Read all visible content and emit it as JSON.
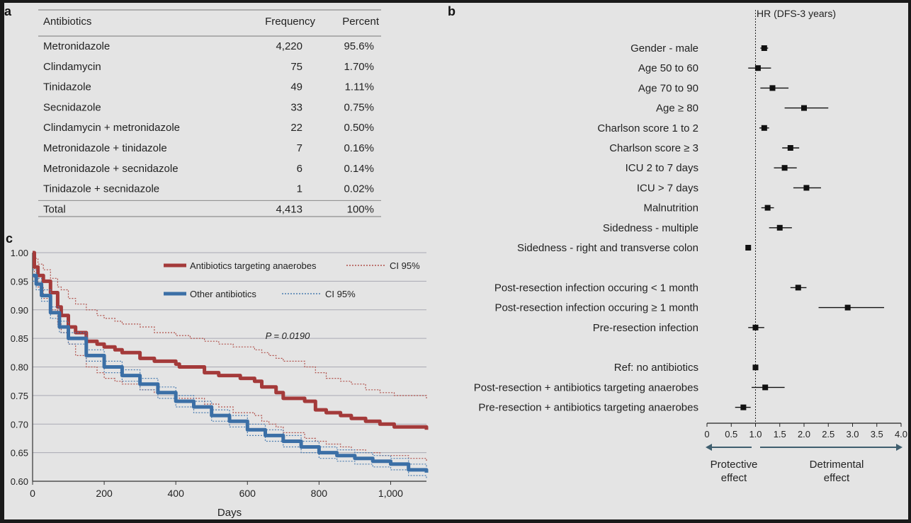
{
  "panels": {
    "a_label": "a",
    "b_label": "b",
    "c_label": "c"
  },
  "table": {
    "headers": [
      "Antibiotics",
      "Frequency",
      "Percent"
    ],
    "rows": [
      {
        "name": "Metronidazole",
        "frequency": "4,220",
        "percent": "95.6%"
      },
      {
        "name": "Clindamycin",
        "frequency": "75",
        "percent": "1.70%"
      },
      {
        "name": "Tinidazole",
        "frequency": "49",
        "percent": "1.11%"
      },
      {
        "name": "Secnidazole",
        "frequency": "33",
        "percent": "0.75%"
      },
      {
        "name": "Clindamycin + metronidazole",
        "frequency": "22",
        "percent": "0.50%"
      },
      {
        "name": "Metronidazole + tinidazole",
        "frequency": "7",
        "percent": "0.16%"
      },
      {
        "name": "Metronidazole + secnidazole",
        "frequency": "6",
        "percent": "0.14%"
      },
      {
        "name": "Tinidazole + secnidazole",
        "frequency": "1",
        "percent": "0.02%"
      }
    ],
    "total": {
      "name": "Total",
      "frequency": "4,413",
      "percent": "100%"
    }
  },
  "chart_data": [
    {
      "type": "line",
      "panel": "c",
      "xlabel": "Days",
      "ylabel": "",
      "xlim": [
        0,
        1100
      ],
      "ylim": [
        0.6,
        1.0
      ],
      "xticks": [
        0,
        200,
        400,
        600,
        800,
        1000
      ],
      "xtick_labels": [
        "0",
        "200",
        "400",
        "600",
        "800",
        "1,000"
      ],
      "yticks": [
        0.6,
        0.65,
        0.7,
        0.75,
        0.8,
        0.85,
        0.9,
        0.95,
        1.0
      ],
      "ytick_labels": [
        "0.60",
        "0.65",
        "0.70",
        "0.75",
        "0.80",
        "0.85",
        "0.90",
        "0.95",
        "1.00"
      ],
      "grid": true,
      "legend_placement": "top-right",
      "annotation": "P = 0.0190",
      "series": [
        {
          "name": "Antibiotics targeting anaerobes",
          "color": "#a43a3a",
          "ci_label": "CI 95%",
          "x": [
            0,
            5,
            15,
            30,
            50,
            70,
            80,
            100,
            120,
            150,
            180,
            200,
            230,
            250,
            300,
            340,
            400,
            410,
            440,
            480,
            520,
            560,
            580,
            620,
            640,
            660,
            680,
            700,
            760,
            790,
            820,
            860,
            890,
            930,
            970,
            1010,
            1050,
            1090,
            1100
          ],
          "y": [
            1.0,
            0.975,
            0.96,
            0.95,
            0.93,
            0.905,
            0.89,
            0.87,
            0.86,
            0.845,
            0.84,
            0.835,
            0.83,
            0.825,
            0.815,
            0.81,
            0.805,
            0.8,
            0.8,
            0.79,
            0.785,
            0.785,
            0.78,
            0.775,
            0.765,
            0.765,
            0.755,
            0.745,
            0.74,
            0.725,
            0.72,
            0.715,
            0.71,
            0.705,
            0.7,
            0.695,
            0.695,
            0.695,
            0.69
          ],
          "ci_upper": [
            1.0,
            0.99,
            0.98,
            0.97,
            0.955,
            0.94,
            0.935,
            0.92,
            0.91,
            0.9,
            0.89,
            0.885,
            0.88,
            0.875,
            0.87,
            0.86,
            0.855,
            0.855,
            0.85,
            0.845,
            0.84,
            0.835,
            0.835,
            0.83,
            0.825,
            0.82,
            0.815,
            0.81,
            0.8,
            0.79,
            0.78,
            0.775,
            0.77,
            0.76,
            0.755,
            0.75,
            0.75,
            0.75,
            0.745
          ],
          "ci_lower": [
            1.0,
            0.955,
            0.94,
            0.92,
            0.9,
            0.875,
            0.86,
            0.84,
            0.82,
            0.8,
            0.79,
            0.78,
            0.775,
            0.77,
            0.76,
            0.755,
            0.75,
            0.745,
            0.745,
            0.735,
            0.73,
            0.72,
            0.72,
            0.715,
            0.705,
            0.7,
            0.695,
            0.685,
            0.675,
            0.67,
            0.665,
            0.66,
            0.655,
            0.65,
            0.645,
            0.645,
            0.64,
            0.64,
            0.635
          ]
        },
        {
          "name": "Other antibiotics",
          "color": "#3b6fa6",
          "ci_label": "CI 95%",
          "x": [
            0,
            10,
            25,
            50,
            75,
            100,
            150,
            200,
            250,
            300,
            350,
            400,
            450,
            500,
            550,
            600,
            650,
            700,
            750,
            800,
            850,
            900,
            950,
            1000,
            1050,
            1100
          ],
          "y": [
            0.96,
            0.945,
            0.925,
            0.895,
            0.87,
            0.85,
            0.82,
            0.8,
            0.785,
            0.77,
            0.755,
            0.74,
            0.73,
            0.715,
            0.705,
            0.69,
            0.68,
            0.67,
            0.66,
            0.65,
            0.645,
            0.64,
            0.635,
            0.63,
            0.62,
            0.615
          ],
          "ci_upper": [
            0.97,
            0.955,
            0.935,
            0.905,
            0.88,
            0.86,
            0.83,
            0.81,
            0.795,
            0.78,
            0.765,
            0.75,
            0.74,
            0.725,
            0.715,
            0.7,
            0.69,
            0.68,
            0.67,
            0.66,
            0.655,
            0.65,
            0.645,
            0.64,
            0.63,
            0.625
          ],
          "ci_lower": [
            0.95,
            0.935,
            0.915,
            0.885,
            0.86,
            0.84,
            0.81,
            0.79,
            0.775,
            0.76,
            0.745,
            0.73,
            0.72,
            0.705,
            0.695,
            0.68,
            0.67,
            0.66,
            0.65,
            0.64,
            0.635,
            0.63,
            0.625,
            0.62,
            0.61,
            0.605
          ]
        }
      ]
    },
    {
      "type": "scatter",
      "panel": "b",
      "title": "HR (DFS-3 years)",
      "xlim": [
        0,
        4.0
      ],
      "xticks": [
        0,
        0.5,
        1.0,
        1.5,
        2.0,
        2.5,
        3.0,
        3.5,
        4.0
      ],
      "xtick_labels": [
        "0",
        "0.5",
        "1.0",
        "1.5",
        "2.0",
        "2.5",
        "3.0",
        "3.5",
        "4.0"
      ],
      "reference_line": 1.0,
      "left_arrow_label": [
        "Protective",
        "effect"
      ],
      "right_arrow_label": [
        "Detrimental",
        "effect"
      ],
      "rows": [
        {
          "label": "Gender - male",
          "hr": 1.18,
          "lo": 1.1,
          "hi": 1.26
        },
        {
          "label": "Age 50 to 60",
          "hr": 1.05,
          "lo": 0.85,
          "hi": 1.32
        },
        {
          "label": "Age 70 to 90",
          "hr": 1.35,
          "lo": 1.1,
          "hi": 1.68
        },
        {
          "label": "Age ≥ 80",
          "hr": 2.0,
          "lo": 1.6,
          "hi": 2.5
        },
        {
          "label": "Charlson score 1 to 2",
          "hr": 1.18,
          "lo": 1.08,
          "hi": 1.28
        },
        {
          "label": "Charlson score ≥ 3",
          "hr": 1.72,
          "lo": 1.55,
          "hi": 1.9
        },
        {
          "label": "ICU 2 to 7 days",
          "hr": 1.6,
          "lo": 1.38,
          "hi": 1.85
        },
        {
          "label": "ICU > 7 days",
          "hr": 2.05,
          "lo": 1.78,
          "hi": 2.35
        },
        {
          "label": "Malnutrition",
          "hr": 1.25,
          "lo": 1.12,
          "hi": 1.38
        },
        {
          "label": "Sidedness - multiple",
          "hr": 1.5,
          "lo": 1.28,
          "hi": 1.75
        },
        {
          "label": "Sidedness - right and transverse colon",
          "hr": 0.85,
          "lo": 0.8,
          "hi": 0.9
        },
        {
          "label": "",
          "hr": null,
          "lo": null,
          "hi": null
        },
        {
          "label": "Post-resection infection occuring < 1 month",
          "hr": 1.88,
          "lo": 1.72,
          "hi": 2.05
        },
        {
          "label": "Post-resection infection occuring ≥ 1 month",
          "hr": 2.9,
          "lo": 2.3,
          "hi": 3.65
        },
        {
          "label": "Pre-resection infection",
          "hr": 1.0,
          "lo": 0.85,
          "hi": 1.18
        },
        {
          "label": "",
          "hr": null,
          "lo": null,
          "hi": null
        },
        {
          "label": "Ref: no antibiotics",
          "hr": 1.0,
          "lo": 1.0,
          "hi": 1.0
        },
        {
          "label": "Post-resection + antibiotics targeting anaerobes",
          "hr": 1.2,
          "lo": 0.92,
          "hi": 1.6
        },
        {
          "label": "Pre-resection + antibiotics targeting anaerobes",
          "hr": 0.75,
          "lo": 0.58,
          "hi": 0.9
        }
      ]
    }
  ]
}
